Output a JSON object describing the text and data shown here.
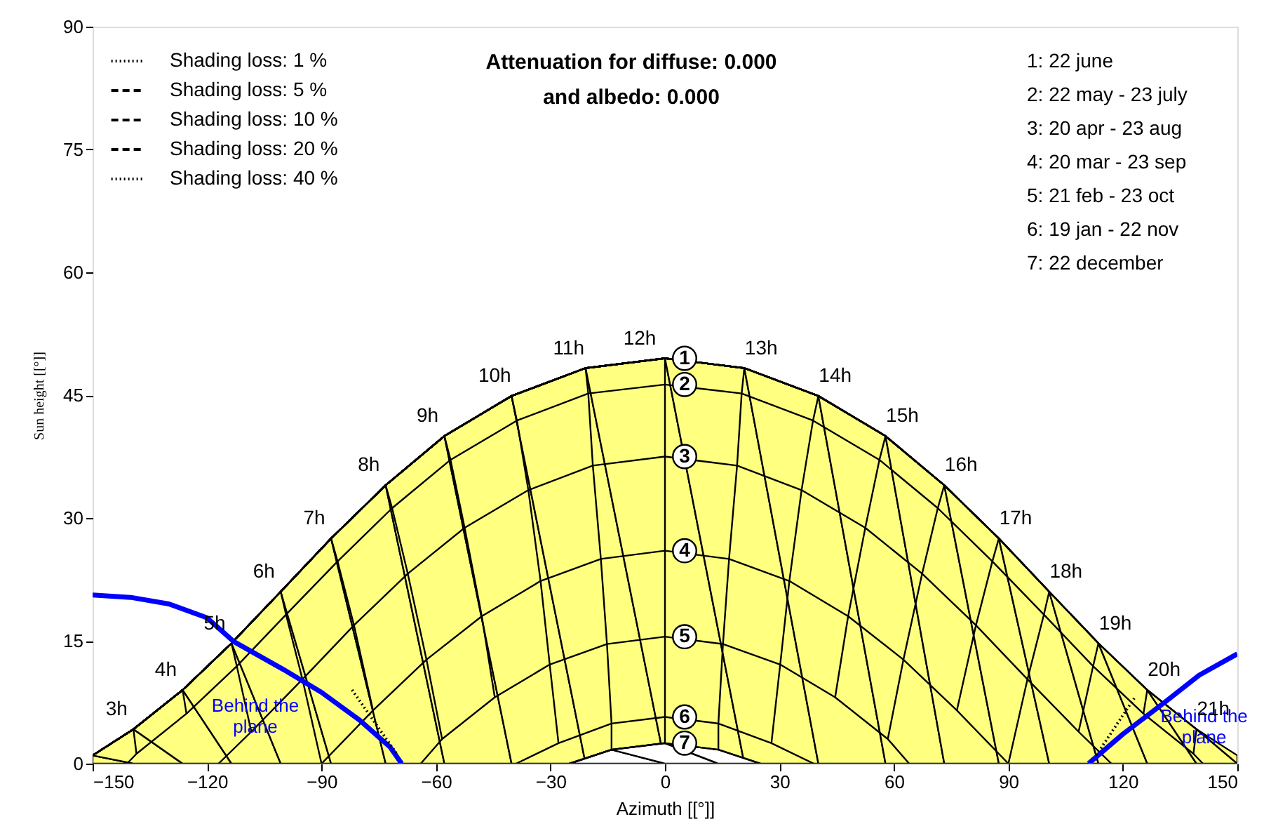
{
  "chart_data": {
    "type": "line",
    "title": "Attenuation for diffuse: 0.000",
    "subtitle": "and albedo: 0.000",
    "xlabel": "Azimuth [[°]]",
    "ylabel": "Sun height [[°]]",
    "xlim": [
      -150,
      150
    ],
    "ylim": [
      0,
      90
    ],
    "xticks": [
      -150,
      -120,
      -90,
      -60,
      -30,
      0,
      30,
      60,
      90,
      120,
      150
    ],
    "yticks": [
      0,
      15,
      30,
      45,
      60,
      75,
      90
    ],
    "grid": false,
    "legend": "top left",
    "series": [
      {
        "name": "1",
        "type": "area",
        "color": "#ffff80",
        "x": [
          -150,
          -139.3,
          -126.4,
          -113.6,
          -100.7,
          -87.5,
          -73.2,
          -57.8,
          -40.2,
          -20.8,
          0,
          20.8,
          40.2,
          57.8,
          73.2,
          87.5,
          100.7,
          113.6,
          126.4,
          139.3,
          150
        ],
        "values": [
          1,
          4.2,
          9.0,
          14.7,
          21.0,
          27.5,
          34.0,
          40.0,
          44.9,
          48.3,
          49.5,
          48.3,
          44.9,
          40.0,
          34.0,
          27.5,
          21.0,
          14.7,
          9.0,
          4.2,
          1
        ]
      },
      {
        "name": "2",
        "color": "#000000",
        "x": [
          -141,
          -138.5,
          -125.4,
          -112.2,
          -99.3,
          -85.8,
          -71.5,
          -56.2,
          -38.8,
          -20.1,
          0,
          20.1,
          38.8,
          56.2,
          71.5,
          85.8,
          99.3,
          112.2,
          125.4,
          138.5,
          141
        ],
        "values": [
          0,
          1.2,
          6.1,
          11.9,
          18.2,
          24.7,
          31.2,
          37.1,
          41.9,
          45.2,
          46.3,
          45.2,
          41.9,
          37.1,
          31.2,
          24.7,
          18.2,
          11.9,
          6.1,
          1.2,
          0
        ]
      },
      {
        "name": "3",
        "color": "#000000",
        "x": [
          -117,
          -108.4,
          -95.0,
          -81.5,
          -67.4,
          -52.5,
          -35.8,
          -18.9,
          0,
          18.9,
          35.8,
          52.5,
          67.4,
          81.5,
          95.0,
          108.4,
          117
        ],
        "values": [
          0,
          3.9,
          10.3,
          16.9,
          23.2,
          28.8,
          33.4,
          36.4,
          37.5,
          36.4,
          33.4,
          28.8,
          23.2,
          16.9,
          10.3,
          3.9,
          0
        ]
      },
      {
        "name": "4",
        "color": "#000000",
        "x": [
          -90,
          -76.5,
          -62.5,
          -48.0,
          -32.6,
          -16.8,
          0,
          16.8,
          32.6,
          48.0,
          62.5,
          76.5,
          90
        ],
        "values": [
          0,
          6.5,
          12.7,
          18.0,
          22.3,
          25.0,
          26.0,
          25.0,
          22.3,
          18.0,
          12.7,
          6.5,
          0
        ]
      },
      {
        "name": "5",
        "color": "#000000",
        "x": [
          -64,
          -58.4,
          -44.6,
          -30.2,
          -15.2,
          0,
          15.2,
          30.2,
          44.6,
          58.4,
          64
        ],
        "values": [
          0,
          3.0,
          8.1,
          12.1,
          14.6,
          15.5,
          14.6,
          12.1,
          8.1,
          3.0,
          0
        ]
      },
      {
        "name": "6",
        "color": "#000000",
        "x": [
          -39,
          -27.9,
          -14.0,
          0,
          14.0,
          27.9,
          39
        ],
        "values": [
          0,
          2.5,
          4.9,
          5.7,
          4.9,
          2.5,
          0
        ]
      },
      {
        "name": "7",
        "type": "area",
        "color": "#ffffff",
        "x": [
          -25,
          -14.0,
          0,
          14.0,
          25
        ],
        "values": [
          0,
          1.7,
          2.5,
          1.7,
          0
        ]
      },
      {
        "color": "#000000",
        "x": [
          -139.3,
          -138.5
        ],
        "values": [
          4.2,
          1.2
        ]
      },
      {
        "color": "#000000",
        "x": [
          -126.4,
          -125.4
        ],
        "values": [
          9.0,
          6.1
        ]
      },
      {
        "color": "#000000",
        "x": [
          -113.6,
          -112.2,
          -108.4
        ],
        "values": [
          14.7,
          11.9,
          3.9
        ]
      },
      {
        "color": "#000000",
        "x": [
          -100.7,
          -99.3,
          -95.0,
          -90
        ],
        "values": [
          21.0,
          18.2,
          10.3,
          0
        ]
      },
      {
        "color": "#000000",
        "x": [
          -87.5,
          -85.8,
          -81.5,
          -76.5
        ],
        "values": [
          27.5,
          24.7,
          16.9,
          6.5
        ]
      },
      {
        "color": "#000000",
        "x": [
          -73.2,
          -71.5,
          -67.4,
          -62.5,
          -58.4
        ],
        "values": [
          34.0,
          31.2,
          23.2,
          12.7,
          3.0
        ]
      },
      {
        "color": "#000000",
        "x": [
          -57.8,
          -56.2,
          -52.5,
          -48.0,
          -44.6
        ],
        "values": [
          40.0,
          37.1,
          28.8,
          18.0,
          8.1
        ]
      },
      {
        "color": "#000000",
        "x": [
          -40.2,
          -38.8,
          -35.8,
          -32.6,
          -30.2,
          -27.9
        ],
        "values": [
          44.9,
          41.9,
          33.4,
          22.3,
          12.1,
          2.5
        ]
      },
      {
        "color": "#000000",
        "x": [
          -20.8,
          -20.1,
          -18.9,
          -16.8,
          -15.2,
          -14.0,
          -14.0
        ],
        "values": [
          48.3,
          45.2,
          36.4,
          25.0,
          14.6,
          4.9,
          1.7
        ]
      },
      {
        "color": "#000000",
        "x": [
          0,
          0,
          0,
          0,
          0,
          0,
          0
        ],
        "values": [
          49.5,
          46.3,
          37.5,
          26.0,
          15.5,
          5.7,
          2.5
        ]
      },
      {
        "color": "#000000",
        "x": [
          20.8,
          20.1,
          18.9,
          16.8,
          15.2,
          14.0,
          14.0
        ],
        "values": [
          48.3,
          45.2,
          36.4,
          25.0,
          14.6,
          4.9,
          1.7
        ]
      },
      {
        "color": "#000000",
        "x": [
          40.2,
          38.8,
          35.8,
          32.6,
          30.2,
          27.9
        ],
        "values": [
          44.9,
          41.9,
          33.4,
          22.3,
          12.1,
          2.5
        ]
      },
      {
        "color": "#000000",
        "x": [
          57.8,
          56.2,
          52.5,
          48.0,
          44.6
        ],
        "values": [
          40.0,
          37.1,
          28.8,
          18.0,
          8.1
        ]
      },
      {
        "color": "#000000",
        "x": [
          73.2,
          71.5,
          67.4,
          62.5,
          58.4
        ],
        "values": [
          34.0,
          31.2,
          23.2,
          12.7,
          3.0
        ]
      },
      {
        "color": "#000000",
        "x": [
          87.5,
          85.8,
          81.5,
          76.5
        ],
        "values": [
          27.5,
          24.7,
          16.9,
          6.5
        ]
      },
      {
        "color": "#000000",
        "x": [
          100.7,
          99.3,
          95.0,
          90
        ],
        "values": [
          21.0,
          18.2,
          10.3,
          0
        ]
      },
      {
        "color": "#000000",
        "x": [
          113.6,
          112.2,
          108.4
        ],
        "values": [
          14.7,
          11.9,
          3.9
        ]
      },
      {
        "color": "#000000",
        "x": [
          126.4,
          125.4
        ],
        "values": [
          9.0,
          6.1
        ]
      },
      {
        "color": "#000000",
        "x": [
          139.3,
          138.5
        ],
        "values": [
          4.2,
          1.2
        ]
      },
      {
        "name": "Behind the plane",
        "color": "#0000ff",
        "x": [
          -150,
          -140,
          -130,
          -120,
          -113,
          -100,
          -90,
          -80,
          -72,
          -69
        ],
        "values": [
          20.6,
          20.3,
          19.5,
          17.8,
          14.9,
          11.5,
          8.7,
          5.3,
          2.0,
          0
        ]
      },
      {
        "name": "Behind the plane",
        "color": "#0000ff",
        "x": [
          111,
          120,
          131,
          140,
          150
        ],
        "values": [
          0,
          3.6,
          7.5,
          10.8,
          13.4
        ]
      },
      {
        "name": "Shading loss: 1 %",
        "color": "#000000",
        "line_style": "dotted",
        "x": [
          -82,
          -70,
          0,
          113,
          123
        ],
        "values": [
          9,
          1,
          null,
          1,
          8
        ]
      },
      {
        "name": "Shading loss: 5 %",
        "color": "#000000",
        "line_style": "dashed"
      },
      {
        "name": "Shading loss: 10 %",
        "color": "#000000",
        "line_style": "dashed"
      },
      {
        "name": "Shading loss: 20 %",
        "color": "#000000",
        "line_style": "dashed"
      },
      {
        "name": "Shading loss: 40 %",
        "color": "#000000",
        "line_style": "dotted"
      }
    ],
    "annotations": [
      "1: 22 june",
      "2: 22 may - 23 july",
      "3: 20 apr - 23 aug",
      "4: 20 mar - 23 sep",
      "5: 21 feb - 23 oct",
      "6: 19 jan - 22 nov",
      "7: 22 december",
      {
        "text": "3h",
        "x": -139.3,
        "y": 4.2
      },
      {
        "text": "4h",
        "x": -126.4,
        "y": 9.0
      },
      {
        "text": "5h",
        "x": -113.6,
        "y": 14.7
      },
      {
        "text": "6h",
        "x": -100.7,
        "y": 21.0
      },
      {
        "text": "7h",
        "x": -87.5,
        "y": 27.5
      },
      {
        "text": "8h",
        "x": -73.2,
        "y": 34.0
      },
      {
        "text": "9h",
        "x": -57.8,
        "y": 40.0
      },
      {
        "text": "10h",
        "x": -40.2,
        "y": 44.9
      },
      {
        "text": "11h",
        "x": -20.8,
        "y": 48.3
      },
      {
        "text": "12h",
        "x": 0,
        "y": 49.5
      },
      {
        "text": "13h",
        "x": 20.8,
        "y": 48.3
      },
      {
        "text": "14h",
        "x": 40.2,
        "y": 44.9
      },
      {
        "text": "15h",
        "x": 57.8,
        "y": 40.0
      },
      {
        "text": "16h",
        "x": 73.2,
        "y": 34.0
      },
      {
        "text": "17h",
        "x": 87.5,
        "y": 27.5
      },
      {
        "text": "18h",
        "x": 100.7,
        "y": 21.0
      },
      {
        "text": "19h",
        "x": 113.6,
        "y": 14.7
      },
      {
        "text": "20h",
        "x": 126.4,
        "y": 9.0
      },
      {
        "text": "21h",
        "x": 139.3,
        "y": 4.2
      }
    ]
  }
}
